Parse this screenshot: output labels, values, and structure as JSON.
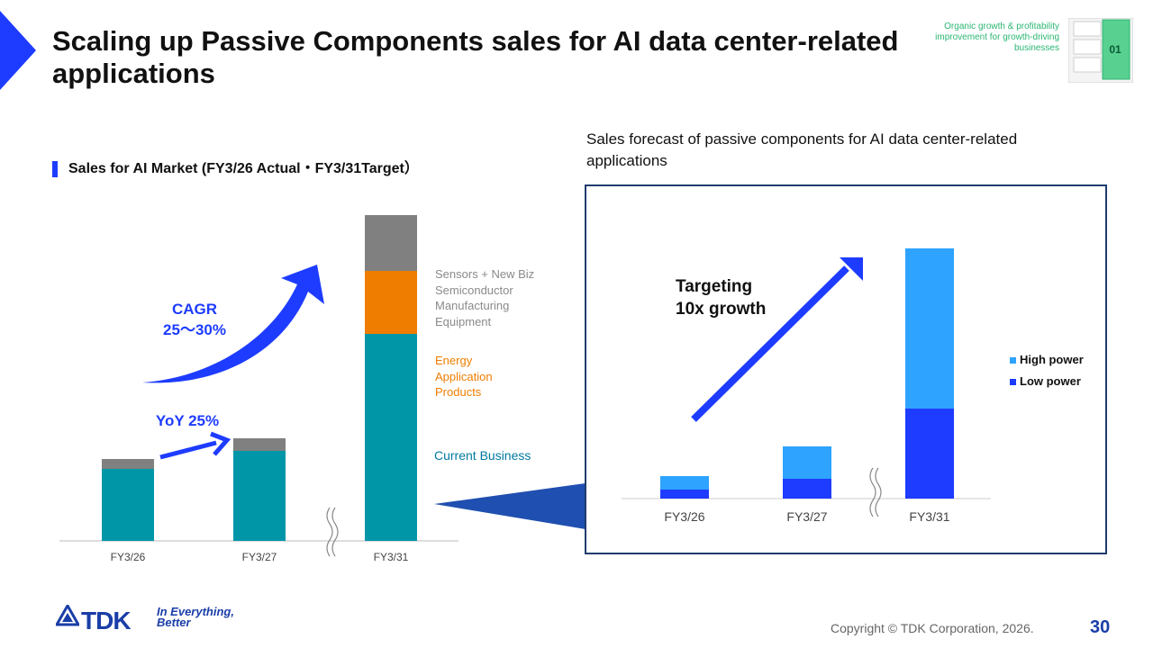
{
  "header": {
    "title": "Scaling up Passive Components sales for AI data center-related applications",
    "section_tag": "Organic growth & profitability improvement for growth-driving businesses",
    "section_number": "01"
  },
  "left_panel": {
    "heading": "Sales for AI Market (FY3/26 Actual・FY3/31Target）",
    "cagr_label": "CAGR",
    "cagr_value": "25～30%",
    "yoy_label": "YoY 25%",
    "segment_labels": {
      "sensors": [
        "Sensors + New Biz",
        "Semiconductor",
        "Manufacturing",
        "Equipment"
      ],
      "energy": [
        "Energy",
        "Application",
        "Products"
      ],
      "current": "Current Business"
    }
  },
  "right_panel": {
    "heading": "Sales forecast of passive components for AI data center-related applications",
    "annotation_line1": "Targeting",
    "annotation_line2": "10x growth"
  },
  "chart_data": [
    {
      "type": "bar",
      "stacked": true,
      "title": "Sales for AI Market (FY3/26 Actual・FY3/31Target）",
      "categories": [
        "FY3/26",
        "FY3/27",
        "FY3/31"
      ],
      "axis_break_before": "FY3/31",
      "series": [
        {
          "name": "Current Business",
          "values": [
            80,
            100,
            230
          ],
          "color": "#0096a8"
        },
        {
          "name": "Energy Application Products",
          "values": [
            0,
            0,
            70
          ],
          "color": "#ef7d00"
        },
        {
          "name": "Sensors + New Biz Semiconductor Manufacturing Equipment",
          "values": [
            11,
            14,
            62
          ],
          "color": "#808080"
        }
      ],
      "annotations": [
        "CAGR 25～30%",
        "YoY 25%"
      ],
      "yaxis_visible": false,
      "grid": false
    },
    {
      "type": "bar",
      "stacked": true,
      "title": "Sales forecast of passive components for AI data center-related applications",
      "categories": [
        "FY3/26",
        "FY3/27",
        "FY3/31"
      ],
      "axis_break_before": "FY3/31",
      "series": [
        {
          "name": "Low power",
          "values": [
            10,
            22,
            100
          ],
          "color": "#1e3cff"
        },
        {
          "name": "High power",
          "values": [
            15,
            36,
            178
          ],
          "color": "#2ea3ff"
        }
      ],
      "legend": "right",
      "annotations": [
        "Targeting 10x growth"
      ],
      "yaxis_visible": false,
      "grid": false
    }
  ],
  "footer": {
    "logo_text": "TDK",
    "tagline_line1": "In Everything,",
    "tagline_line2": "Better",
    "copyright": "Copyright  © TDK Corporation, 2026.",
    "page_number": "30"
  }
}
